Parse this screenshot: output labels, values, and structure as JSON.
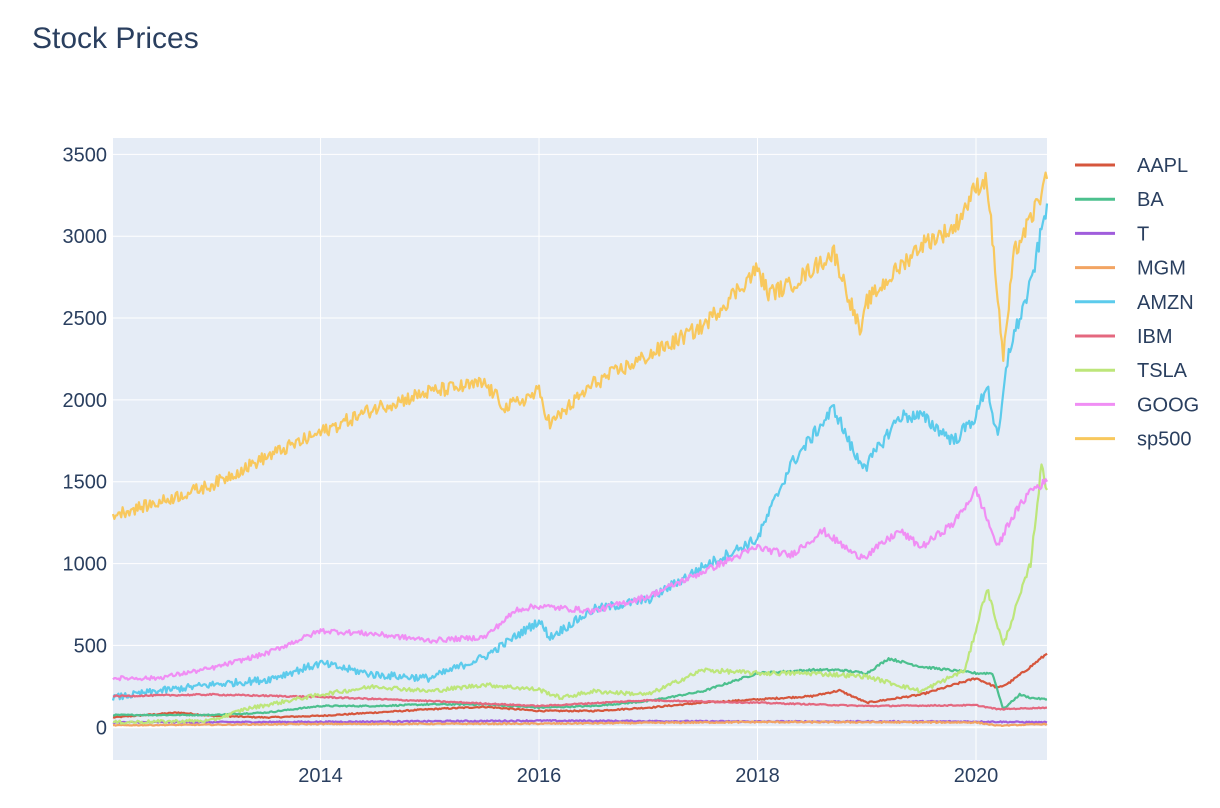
{
  "chart_data": {
    "type": "line",
    "title": "Stock Prices",
    "xlabel": "",
    "ylabel": "",
    "x_range": [
      2012.1,
      2020.65
    ],
    "ylim": [
      -200,
      3600
    ],
    "y_ticks": [
      0,
      500,
      1000,
      1500,
      2000,
      2500,
      3000,
      3500
    ],
    "x_ticks": [
      2014,
      2016,
      2018,
      2020
    ],
    "x_tick_labels": [
      "2014",
      "2016",
      "2018",
      "2020"
    ],
    "grid": true,
    "legend_position": "right",
    "series": [
      {
        "name": "AAPL",
        "color": "#d6563c",
        "x": [
          2012.1,
          2012.7,
          2013.0,
          2013.5,
          2014.0,
          2014.5,
          2015.0,
          2015.5,
          2016.0,
          2016.5,
          2017.0,
          2017.5,
          2018.0,
          2018.5,
          2018.75,
          2019.0,
          2019.5,
          2020.0,
          2020.2,
          2020.3,
          2020.5,
          2020.65
        ],
        "y": [
          60,
          90,
          70,
          60,
          70,
          90,
          110,
          125,
          100,
          100,
          120,
          150,
          170,
          190,
          225,
          150,
          200,
          300,
          240,
          270,
          370,
          450
        ]
      },
      {
        "name": "BA",
        "color": "#4cc08e",
        "x": [
          2012.1,
          2012.7,
          2013.0,
          2013.5,
          2014.0,
          2014.5,
          2015.0,
          2015.5,
          2016.0,
          2016.5,
          2017.0,
          2017.5,
          2018.0,
          2018.5,
          2018.75,
          2019.0,
          2019.2,
          2019.5,
          2020.0,
          2020.15,
          2020.25,
          2020.4,
          2020.5,
          2020.65
        ],
        "y": [
          75,
          75,
          75,
          90,
          130,
          130,
          140,
          140,
          120,
          130,
          160,
          220,
          330,
          350,
          350,
          330,
          420,
          370,
          330,
          330,
          110,
          200,
          180,
          170
        ]
      },
      {
        "name": "T",
        "color": "#a05ddc",
        "x": [
          2012.1,
          2014.0,
          2016.0,
          2018.0,
          2020.0,
          2020.65
        ],
        "y": [
          30,
          33,
          40,
          35,
          35,
          30
        ]
      },
      {
        "name": "MGM",
        "color": "#f2a463",
        "x": [
          2012.1,
          2014.0,
          2016.0,
          2018.0,
          2020.0,
          2020.2,
          2020.65
        ],
        "y": [
          12,
          20,
          22,
          32,
          30,
          10,
          20
        ]
      },
      {
        "name": "AMZN",
        "color": "#5ccbec",
        "x": [
          2012.1,
          2012.5,
          2013.0,
          2013.5,
          2014.0,
          2014.5,
          2015.0,
          2015.5,
          2016.0,
          2016.1,
          2016.5,
          2017.0,
          2017.5,
          2018.0,
          2018.3,
          2018.7,
          2018.9,
          2019.0,
          2019.3,
          2019.5,
          2019.8,
          2020.0,
          2020.1,
          2020.2,
          2020.3,
          2020.5,
          2020.65
        ],
        "y": [
          180,
          220,
          260,
          290,
          390,
          320,
          300,
          430,
          650,
          550,
          720,
          780,
          980,
          1150,
          1600,
          1950,
          1650,
          1600,
          1900,
          1900,
          1750,
          1900,
          2100,
          1750,
          2300,
          2700,
          3200
        ]
      },
      {
        "name": "IBM",
        "color": "#e4687f",
        "x": [
          2012.1,
          2013.0,
          2014.0,
          2015.0,
          2016.0,
          2017.0,
          2018.0,
          2019.0,
          2020.0,
          2020.2,
          2020.65
        ],
        "y": [
          190,
          200,
          185,
          160,
          130,
          165,
          150,
          130,
          135,
          110,
          120
        ]
      },
      {
        "name": "TSLA",
        "color": "#bde67a",
        "x": [
          2012.1,
          2013.0,
          2013.3,
          2014.0,
          2014.5,
          2015.0,
          2015.5,
          2016.0,
          2016.2,
          2016.5,
          2017.0,
          2017.5,
          2018.0,
          2018.5,
          2019.0,
          2019.5,
          2019.9,
          2020.1,
          2020.25,
          2020.4,
          2020.5,
          2020.6,
          2020.65
        ],
        "y": [
          30,
          40,
          110,
          200,
          250,
          220,
          260,
          230,
          180,
          220,
          200,
          350,
          330,
          330,
          310,
          220,
          350,
          850,
          500,
          800,
          1000,
          1600,
          1450
        ]
      },
      {
        "name": "GOOG",
        "color": "#f08ef4",
        "x": [
          2012.1,
          2012.5,
          2013.0,
          2013.5,
          2014.0,
          2014.5,
          2015.0,
          2015.5,
          2015.8,
          2016.0,
          2016.5,
          2017.0,
          2017.5,
          2018.0,
          2018.3,
          2018.6,
          2018.9,
          2019.0,
          2019.3,
          2019.5,
          2019.8,
          2020.0,
          2020.2,
          2020.3,
          2020.5,
          2020.65
        ],
        "y": [
          300,
          300,
          360,
          450,
          590,
          570,
          530,
          550,
          720,
          740,
          710,
          800,
          950,
          1100,
          1050,
          1200,
          1050,
          1050,
          1200,
          1100,
          1250,
          1450,
          1100,
          1250,
          1450,
          1500
        ]
      },
      {
        "name": "sp500",
        "color": "#f8c85d",
        "x": [
          2012.1,
          2012.5,
          2013.0,
          2013.5,
          2014.0,
          2014.5,
          2015.0,
          2015.5,
          2015.7,
          2016.0,
          2016.1,
          2016.5,
          2017.0,
          2017.5,
          2018.0,
          2018.1,
          2018.3,
          2018.7,
          2018.95,
          2019.0,
          2019.5,
          2019.8,
          2020.0,
          2020.1,
          2020.25,
          2020.35,
          2020.5,
          2020.65
        ],
        "y": [
          1300,
          1370,
          1480,
          1650,
          1800,
          1950,
          2050,
          2100,
          1950,
          2050,
          1850,
          2100,
          2270,
          2450,
          2800,
          2650,
          2700,
          2900,
          2400,
          2600,
          2950,
          3050,
          3300,
          3350,
          2250,
          2900,
          3100,
          3350
        ]
      }
    ]
  }
}
